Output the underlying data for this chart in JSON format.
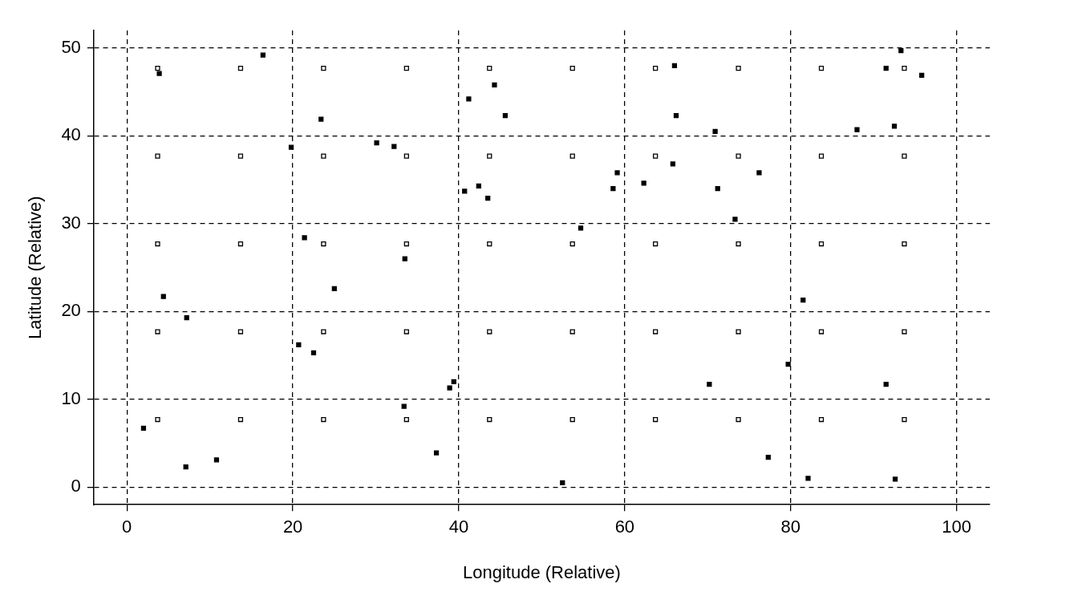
{
  "chart_data": {
    "type": "scatter",
    "xlabel": "Longitude (Relative)",
    "ylabel": "Latitude (Relative)",
    "xlim": [
      -4,
      104
    ],
    "ylim": [
      -2,
      52
    ],
    "xticks": [
      0,
      20,
      40,
      60,
      80,
      100
    ],
    "yticks": [
      0,
      10,
      20,
      30,
      40,
      50
    ],
    "grid": true,
    "line_style": "dashed",
    "legend": false,
    "series": [
      {
        "color": "#000000",
        "marker": "square-open",
        "x": [
          3.7,
          13.7,
          23.7,
          33.7,
          43.7,
          53.7,
          63.7,
          73.7,
          83.7,
          93.7,
          3.7,
          13.7,
          23.7,
          33.7,
          43.7,
          53.7,
          63.7,
          73.7,
          83.7,
          93.7,
          3.7,
          13.7,
          23.7,
          33.7,
          43.7,
          53.7,
          63.7,
          73.7,
          83.7,
          93.7,
          3.7,
          13.7,
          23.7,
          33.7,
          43.7,
          53.7,
          63.7,
          73.7,
          83.7,
          93.7,
          3.7,
          13.7,
          23.7,
          33.7,
          43.7,
          53.7,
          63.7,
          73.7,
          83.7,
          93.7
        ],
        "values": [
          7.7,
          7.7,
          7.7,
          7.7,
          7.7,
          7.7,
          7.7,
          7.7,
          7.7,
          7.7,
          17.7,
          17.7,
          17.7,
          17.7,
          17.7,
          17.7,
          17.7,
          17.7,
          17.7,
          17.7,
          27.7,
          27.7,
          27.7,
          27.7,
          27.7,
          27.7,
          27.7,
          27.7,
          27.7,
          27.7,
          37.7,
          37.7,
          37.7,
          37.7,
          37.7,
          37.7,
          37.7,
          37.7,
          37.7,
          37.7,
          47.7,
          47.7,
          47.7,
          47.7,
          47.7,
          47.7,
          47.7,
          47.7,
          47.7,
          47.7
        ]
      },
      {
        "color": "#000000",
        "marker": "square",
        "x": [
          2.0,
          3.9,
          4.4,
          7.1,
          7.2,
          10.8,
          16.4,
          19.8,
          20.7,
          21.4,
          22.5,
          23.4,
          25.0,
          30.1,
          32.2,
          33.4,
          33.5,
          37.3,
          38.9,
          39.4,
          40.7,
          41.2,
          42.4,
          43.5,
          44.3,
          45.6,
          52.5,
          54.7,
          58.6,
          59.1,
          62.3,
          65.8,
          66.0,
          66.2,
          70.2,
          70.9,
          71.2,
          73.3,
          76.2,
          77.3,
          79.7,
          81.5,
          82.1,
          88.0,
          91.5,
          91.5,
          92.5,
          92.6,
          93.3,
          95.8
        ],
        "values": [
          6.7,
          47.1,
          21.7,
          2.3,
          19.3,
          3.1,
          49.2,
          38.7,
          16.2,
          28.4,
          15.3,
          41.9,
          22.6,
          39.2,
          38.8,
          9.2,
          26.0,
          3.9,
          11.3,
          12.0,
          33.7,
          44.2,
          34.3,
          32.9,
          45.8,
          42.3,
          0.5,
          29.5,
          34.0,
          35.8,
          34.6,
          36.8,
          48.0,
          42.3,
          11.7,
          40.5,
          34.0,
          30.5,
          35.8,
          3.4,
          14.0,
          21.3,
          1.0,
          40.7,
          11.7,
          47.7,
          41.1,
          0.9,
          49.7,
          46.9
        ]
      }
    ]
  }
}
